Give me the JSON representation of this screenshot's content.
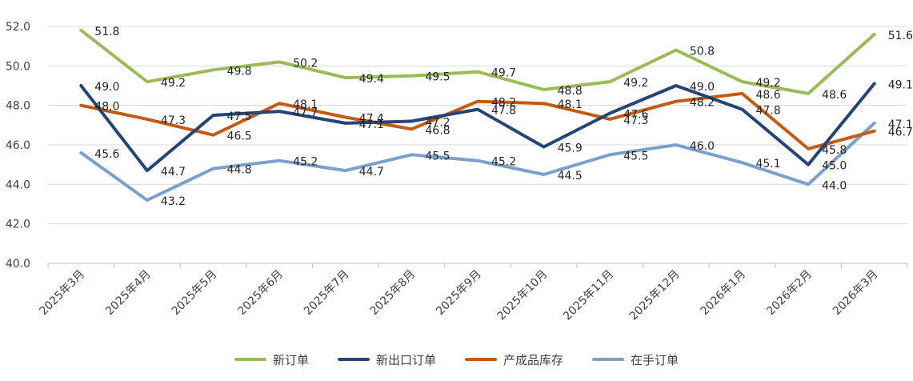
{
  "chart_data": {
    "type": "line",
    "categories": [
      "2025年3月",
      "2025年4月",
      "2025年5月",
      "2025年6月",
      "2025年7月",
      "2025年8月",
      "2025年9月",
      "2025年10月",
      "2025年11月",
      "2025年12月",
      "2026年1月",
      "2026年2月",
      "2026年3月"
    ],
    "ylim": [
      40.0,
      52.0
    ],
    "yticks": [
      "40.0",
      "42.0",
      "44.0",
      "46.0",
      "48.0",
      "50.0",
      "52.0"
    ],
    "grid": "horizontal",
    "legend_position": "bottom",
    "series": [
      {
        "name": "新订单",
        "color": "#9BBB59",
        "values": [
          51.8,
          49.2,
          49.8,
          50.2,
          49.4,
          49.5,
          49.7,
          48.8,
          49.2,
          50.8,
          49.2,
          48.6,
          51.6
        ]
      },
      {
        "name": "新出口订单",
        "color": "#264478",
        "values": [
          49.0,
          44.7,
          47.5,
          47.7,
          47.1,
          47.2,
          47.8,
          45.9,
          47.6,
          49.0,
          47.8,
          45.0,
          49.1
        ]
      },
      {
        "name": "产成品库存",
        "color": "#C55A11",
        "values": [
          48.0,
          47.3,
          46.5,
          48.1,
          47.4,
          46.8,
          48.2,
          48.1,
          47.3,
          48.2,
          48.6,
          45.8,
          46.7
        ]
      },
      {
        "name": "在手订单",
        "color": "#7BA0CD",
        "values": [
          45.6,
          43.2,
          44.8,
          45.2,
          44.7,
          45.5,
          45.2,
          44.5,
          45.5,
          46.0,
          45.1,
          44.0,
          47.1
        ]
      }
    ]
  }
}
